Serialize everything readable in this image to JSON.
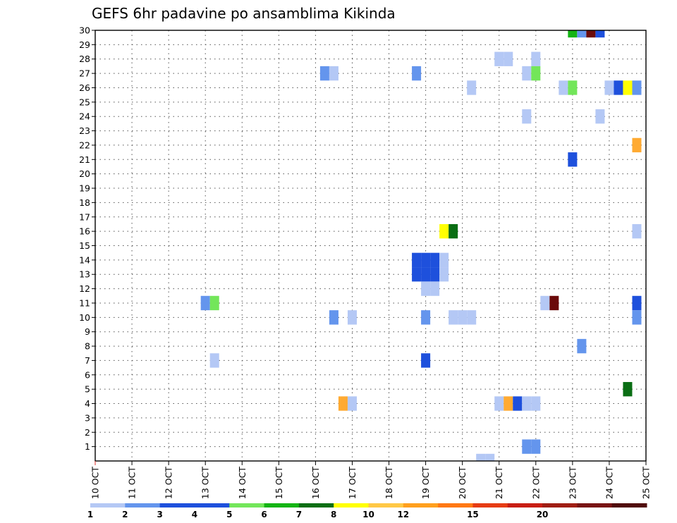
{
  "chart_data": {
    "type": "heatmap",
    "title": "GEFS 6hr padavine po ansamblima Kikinda",
    "x_tick_labels": [
      "10 OCT",
      "11 OCT",
      "12 OCT",
      "13 OCT",
      "14 OCT",
      "15 OCT",
      "16 OCT",
      "17 OCT",
      "18 OCT",
      "19 OCT",
      "20 OCT",
      "21 OCT",
      "22 OCT",
      "23 OCT",
      "24 OCT",
      "25 OCT"
    ],
    "y_tick_labels": [
      "1",
      "2",
      "3",
      "4",
      "5",
      "6",
      "7",
      "8",
      "9",
      "10",
      "11",
      "12",
      "13",
      "14",
      "15",
      "16",
      "17",
      "18",
      "19",
      "20",
      "21",
      "22",
      "23",
      "24",
      "25",
      "26",
      "27",
      "28",
      "29",
      "30"
    ],
    "x_range_days": [
      0,
      15
    ],
    "y_range": [
      0,
      30
    ],
    "grid": true,
    "legend": {
      "colors": [
        "#b4c8f5",
        "#6495ed",
        "#1e50dc",
        "#1e50dc",
        "#73e65a",
        "#14b414",
        "#0a6e14",
        "#ffff00",
        "#ffc846",
        "#ffa01e",
        "#ff7814",
        "#e63c14",
        "#c81e14",
        "#a01e14",
        "#781414",
        "#500a0a"
      ],
      "labels": [
        "1",
        "2",
        "3",
        "4",
        "5",
        "6",
        "7",
        "8",
        "10",
        "12",
        "15",
        "20"
      ]
    },
    "cells": [
      {
        "member": 30,
        "day": 13.0,
        "value": 6
      },
      {
        "member": 30,
        "day": 13.25,
        "value": 2
      },
      {
        "member": 30,
        "day": 13.5,
        "value": 20
      },
      {
        "member": 30,
        "day": 13.75,
        "value": 3
      },
      {
        "member": 28,
        "day": 11.0,
        "value": 1
      },
      {
        "member": 28,
        "day": 11.25,
        "value": 1
      },
      {
        "member": 28,
        "day": 12.0,
        "value": 1
      },
      {
        "member": 27,
        "day": 6.25,
        "value": 2
      },
      {
        "member": 27,
        "day": 6.5,
        "value": 1
      },
      {
        "member": 27,
        "day": 8.75,
        "value": 2
      },
      {
        "member": 27,
        "day": 11.75,
        "value": 1
      },
      {
        "member": 27,
        "day": 12.0,
        "value": 5
      },
      {
        "member": 26,
        "day": 10.25,
        "value": 1
      },
      {
        "member": 26,
        "day": 12.75,
        "value": 1
      },
      {
        "member": 26,
        "day": 13.0,
        "value": 5
      },
      {
        "member": 26,
        "day": 14.0,
        "value": 1
      },
      {
        "member": 26,
        "day": 14.25,
        "value": 3
      },
      {
        "member": 26,
        "day": 14.5,
        "value": 8
      },
      {
        "member": 26,
        "day": 14.75,
        "value": 2
      },
      {
        "member": 24,
        "day": 11.75,
        "value": 1
      },
      {
        "member": 24,
        "day": 13.75,
        "value": 1
      },
      {
        "member": 22,
        "day": 14.75,
        "value": 10
      },
      {
        "member": 21,
        "day": 13.0,
        "value": 3
      },
      {
        "member": 16,
        "day": 9.5,
        "value": 8
      },
      {
        "member": 16,
        "day": 9.75,
        "value": 7
      },
      {
        "member": 16,
        "day": 14.75,
        "value": 1
      },
      {
        "member": 14,
        "day": 8.75,
        "value": 3
      },
      {
        "member": 14,
        "day": 9.0,
        "value": 3
      },
      {
        "member": 14,
        "day": 9.25,
        "value": 3
      },
      {
        "member": 14,
        "day": 9.5,
        "value": 1
      },
      {
        "member": 13,
        "day": 8.75,
        "value": 3
      },
      {
        "member": 13,
        "day": 9.0,
        "value": 3
      },
      {
        "member": 13,
        "day": 9.25,
        "value": 3
      },
      {
        "member": 13,
        "day": 9.5,
        "value": 1
      },
      {
        "member": 12,
        "day": 9.0,
        "value": 1
      },
      {
        "member": 12,
        "day": 9.25,
        "value": 1
      },
      {
        "member": 11,
        "day": 3.0,
        "value": 2
      },
      {
        "member": 11,
        "day": 3.25,
        "value": 5
      },
      {
        "member": 11,
        "day": 12.25,
        "value": 1
      },
      {
        "member": 11,
        "day": 12.5,
        "value": 20
      },
      {
        "member": 11,
        "day": 14.75,
        "value": 3
      },
      {
        "member": 10,
        "day": 6.5,
        "value": 2
      },
      {
        "member": 10,
        "day": 7.0,
        "value": 1
      },
      {
        "member": 10,
        "day": 9.0,
        "value": 2
      },
      {
        "member": 10,
        "day": 9.75,
        "value": 1
      },
      {
        "member": 10,
        "day": 10.0,
        "value": 1
      },
      {
        "member": 10,
        "day": 10.25,
        "value": 1
      },
      {
        "member": 10,
        "day": 14.75,
        "value": 2
      },
      {
        "member": 8,
        "day": 13.25,
        "value": 2
      },
      {
        "member": 7,
        "day": 3.25,
        "value": 1
      },
      {
        "member": 7,
        "day": 9.0,
        "value": 3
      },
      {
        "member": 5,
        "day": 14.5,
        "value": 7
      },
      {
        "member": 4,
        "day": 6.75,
        "value": 10
      },
      {
        "member": 4,
        "day": 7.0,
        "value": 1
      },
      {
        "member": 4,
        "day": 11.0,
        "value": 1
      },
      {
        "member": 4,
        "day": 11.25,
        "value": 10
      },
      {
        "member": 4,
        "day": 11.5,
        "value": 3
      },
      {
        "member": 4,
        "day": 11.75,
        "value": 1
      },
      {
        "member": 4,
        "day": 12.0,
        "value": 1
      },
      {
        "member": 1,
        "day": 11.75,
        "value": 2
      },
      {
        "member": 1,
        "day": 12.0,
        "value": 2
      },
      {
        "member": 0,
        "day": 10.5,
        "value": 1
      },
      {
        "member": 0,
        "day": 10.75,
        "value": 1
      }
    ]
  }
}
